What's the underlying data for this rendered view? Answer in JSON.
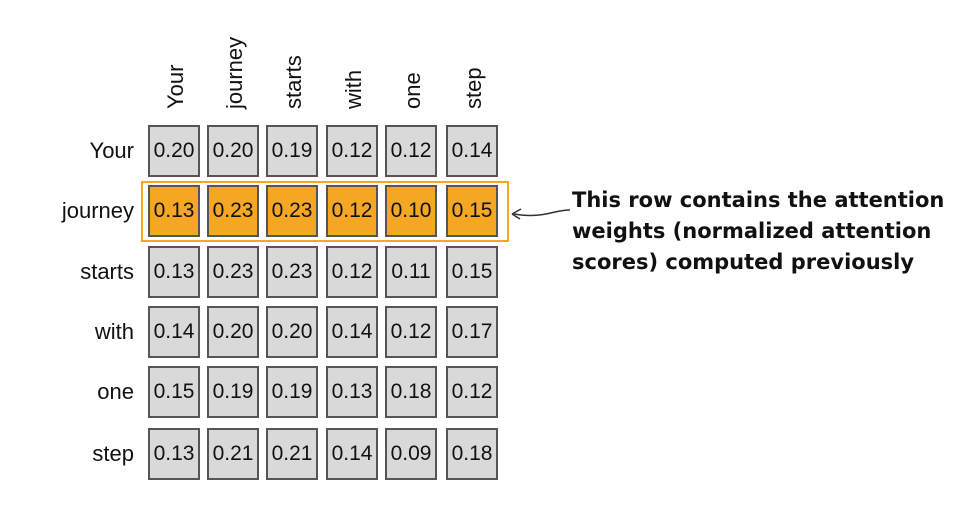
{
  "tokens": [
    "Your",
    "journey",
    "starts",
    "with",
    "one",
    "step"
  ],
  "weights": [
    [
      "0.20",
      "0.20",
      "0.19",
      "0.12",
      "0.12",
      "0.14"
    ],
    [
      "0.13",
      "0.23",
      "0.23",
      "0.12",
      "0.10",
      "0.15"
    ],
    [
      "0.13",
      "0.23",
      "0.23",
      "0.12",
      "0.11",
      "0.15"
    ],
    [
      "0.14",
      "0.20",
      "0.20",
      "0.14",
      "0.12",
      "0.17"
    ],
    [
      "0.15",
      "0.19",
      "0.19",
      "0.13",
      "0.18",
      "0.12"
    ],
    [
      "0.13",
      "0.21",
      "0.21",
      "0.14",
      "0.09",
      "0.18"
    ]
  ],
  "highlighted_row": 1,
  "annotation": {
    "line1": "This row contains the attention",
    "line2": "weights (normalized attention",
    "line3": "scores) computed previously"
  },
  "colors": {
    "cell_fill": "#d9d9d9",
    "highlight_fill": "#f5a623",
    "cell_border": "#555555"
  }
}
